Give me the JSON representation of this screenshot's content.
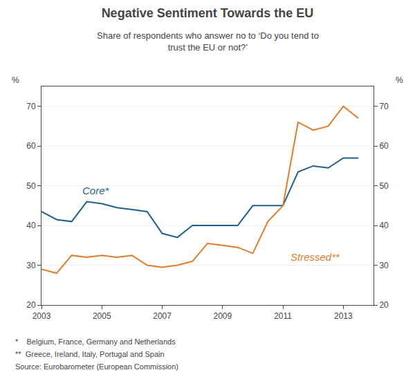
{
  "chart_data": {
    "type": "line",
    "title": "Negative Sentiment Towards the EU",
    "subtitle": "Share of respondents who answer no to ‘Do you tend to\ntrust the EU or not?’",
    "notes": [
      "*    Belgium, France, Germany and Netherlands",
      "**  Greece, Ireland, Italy, Portugal and Spain",
      "Source: Eurobarometer (European Commission)"
    ],
    "ylabel": "%",
    "y2label": "%",
    "x": [
      2003.0,
      2003.5,
      2004.0,
      2004.5,
      2005.0,
      2005.5,
      2006.0,
      2006.5,
      2007.0,
      2007.5,
      2008.0,
      2008.5,
      2009.0,
      2009.5,
      2010.0,
      2010.5,
      2011.0,
      2011.5,
      2012.0,
      2012.5,
      2013.0,
      2013.5
    ],
    "series": [
      {
        "name": "Core*",
        "color": "#1f5f8b",
        "label_x": 2004.3,
        "label_y": 47.0,
        "values": [
          43.5,
          41.5,
          41.0,
          46.0,
          45.5,
          44.5,
          44.0,
          43.5,
          38.0,
          37.0,
          40.0,
          40.0,
          40.0,
          40.0,
          45.0,
          45.0,
          45.0,
          53.5,
          55.0,
          54.5,
          57.0,
          57.0
        ]
      },
      {
        "name": "Stressed**",
        "color": "#e07b2a",
        "label_x": 2011.2,
        "label_y": 34.0,
        "values": [
          29.0,
          28.0,
          32.5,
          32.0,
          32.5,
          32.0,
          32.5,
          30.0,
          29.5,
          30.0,
          31.0,
          35.5,
          35.0,
          34.5,
          33.0,
          41.0,
          45.0,
          66.0,
          64.0,
          65.0,
          70.0,
          67.0
        ]
      }
    ],
    "xlim": [
      2003,
      2014
    ],
    "xticks": [
      2003,
      2005,
      2007,
      2009,
      2011,
      2013
    ],
    "ylim": [
      20,
      75
    ],
    "yticks": [
      20,
      30,
      40,
      50,
      60,
      70
    ],
    "y2lim": [
      20,
      75
    ],
    "y2ticks": [
      20,
      30,
      40,
      50,
      60,
      70
    ],
    "grid": "y"
  }
}
